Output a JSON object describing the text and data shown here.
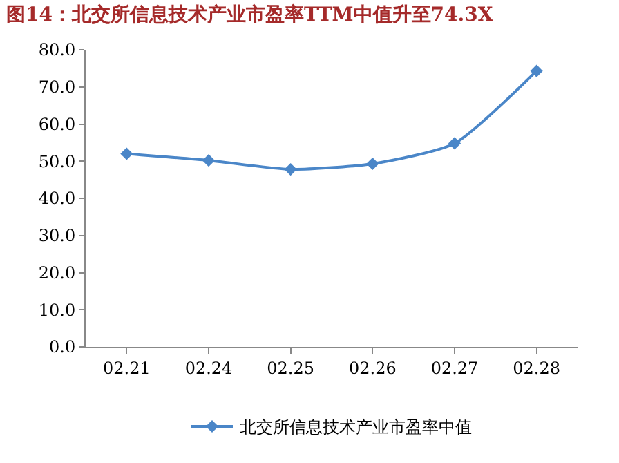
{
  "chart_data": {
    "type": "line",
    "title": "图14：北交所信息技术产业市盈率TTM中值升至74.3X",
    "categories": [
      "02.21",
      "02.24",
      "02.25",
      "02.26",
      "02.27",
      "02.28"
    ],
    "series": [
      {
        "name": "北交所信息技术产业市盈率中值",
        "color": "#4a86c8",
        "values": [
          52.0,
          50.2,
          47.8,
          49.3,
          54.8,
          74.3
        ]
      }
    ],
    "ylim": [
      0,
      80
    ],
    "yticks": [
      {
        "value": 0,
        "label": "0.0"
      },
      {
        "value": 10,
        "label": "10.0"
      },
      {
        "value": 20,
        "label": "20.0"
      },
      {
        "value": 30,
        "label": "30.0"
      },
      {
        "value": 40,
        "label": "40.0"
      },
      {
        "value": 50,
        "label": "50.0"
      },
      {
        "value": 60,
        "label": "60.0"
      },
      {
        "value": 70,
        "label": "70.0"
      },
      {
        "value": 80,
        "label": "80.0"
      }
    ],
    "legend": "bottom",
    "marker": "diamond",
    "line_style": "solid"
  }
}
